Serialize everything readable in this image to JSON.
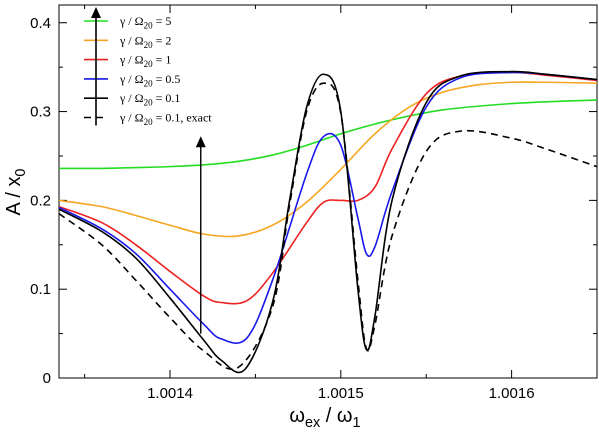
{
  "chart_data": {
    "type": "line",
    "xlabel": {
      "main": "ω",
      "sub": "ex",
      "sep": " / ω",
      "sub2": "1"
    },
    "ylabel": {
      "main": "A / x",
      "sub": "0"
    },
    "xlim": [
      1.001335,
      1.00165
    ],
    "ylim": [
      0,
      0.42
    ],
    "x_ticks": [
      1.0014,
      1.0015,
      1.0016
    ],
    "x_tick_labels": [
      "1.0014",
      "1.0015",
      "1.0016"
    ],
    "y_ticks": [
      0,
      0.1,
      0.2,
      0.3,
      0.4
    ],
    "y_tick_labels": [
      "0",
      "0.1",
      "0.2",
      "0.3",
      "0.4"
    ],
    "grid": false,
    "legend_position": "top-left",
    "annotation": {
      "type": "arrow",
      "direction": "up",
      "x": 1.001418,
      "y_from": 0.05,
      "y_to": 0.27
    },
    "series": [
      {
        "name": "γ / Ω20 = 5",
        "label": {
          "pre": "γ / Ω",
          "sub": "20",
          "post": " = 5"
        },
        "color": "#22dd22",
        "dash": false,
        "x": [
          1.001335,
          1.00136,
          1.00138,
          1.0014,
          1.00142,
          1.00144,
          1.00146,
          1.00148,
          1.0015,
          1.00152,
          1.00154,
          1.00156,
          1.00158,
          1.0016,
          1.00162,
          1.00165
        ],
        "y": [
          0.236,
          0.236,
          0.237,
          0.238,
          0.24,
          0.244,
          0.251,
          0.262,
          0.275,
          0.286,
          0.295,
          0.302,
          0.306,
          0.309,
          0.311,
          0.313
        ]
      },
      {
        "name": "γ / Ω20 = 2",
        "label": {
          "pre": "γ / Ω",
          "sub": "20",
          "post": " = 2"
        },
        "color": "#f5a623",
        "dash": false,
        "x": [
          1.001335,
          1.00136,
          1.00138,
          1.0014,
          1.00142,
          1.00144,
          1.00146,
          1.00148,
          1.0015,
          1.00152,
          1.00154,
          1.00156,
          1.00158,
          1.0016,
          1.00162,
          1.00165
        ],
        "y": [
          0.2,
          0.193,
          0.183,
          0.172,
          0.162,
          0.16,
          0.172,
          0.198,
          0.235,
          0.275,
          0.305,
          0.322,
          0.33,
          0.333,
          0.333,
          0.332
        ]
      },
      {
        "name": "γ / Ω20 = 1",
        "label": {
          "pre": "γ / Ω",
          "sub": "20",
          "post": " = 1"
        },
        "color": "#ee2020",
        "dash": false,
        "x": [
          1.001335,
          1.00136,
          1.00138,
          1.0014,
          1.00142,
          1.00143,
          1.001445,
          1.00146,
          1.00148,
          1.00149,
          1.0015,
          1.00151,
          1.00152,
          1.00153,
          1.00155,
          1.00157,
          1.0016,
          1.00162,
          1.00165
        ],
        "y": [
          0.193,
          0.175,
          0.15,
          0.12,
          0.092,
          0.085,
          0.087,
          0.118,
          0.175,
          0.198,
          0.2,
          0.2,
          0.215,
          0.258,
          0.32,
          0.34,
          0.344,
          0.341,
          0.335
        ]
      },
      {
        "name": "γ / Ω20 = 0.5",
        "label": {
          "pre": "γ / Ω",
          "sub": "20",
          "post": " = 0.5"
        },
        "color": "#1818ee",
        "dash": false,
        "x": [
          1.001335,
          1.00136,
          1.00138,
          1.0014,
          1.00142,
          1.00143,
          1.001445,
          1.00146,
          1.00148,
          1.00149,
          1.0015,
          1.00151,
          1.001515,
          1.00152,
          1.00153,
          1.00155,
          1.00157,
          1.0016,
          1.00162,
          1.00165
        ],
        "y": [
          0.192,
          0.168,
          0.14,
          0.1,
          0.06,
          0.044,
          0.045,
          0.11,
          0.23,
          0.272,
          0.262,
          0.18,
          0.14,
          0.148,
          0.21,
          0.305,
          0.338,
          0.344,
          0.342,
          0.336
        ]
      },
      {
        "name": "γ / Ω20 = 0.1",
        "label": {
          "pre": "γ / Ω",
          "sub": "20",
          "post": " = 0.1"
        },
        "color": "#000000",
        "dash": false,
        "x": [
          1.001335,
          1.00136,
          1.00138,
          1.0014,
          1.00142,
          1.00143,
          1.001444,
          1.00146,
          1.00147,
          1.00148,
          1.00149,
          1.0015,
          1.00151,
          1.001515,
          1.00152,
          1.00153,
          1.00155,
          1.00157,
          1.0016,
          1.00162,
          1.00165
        ],
        "y": [
          0.19,
          0.165,
          0.135,
          0.09,
          0.042,
          0.02,
          0.01,
          0.085,
          0.2,
          0.305,
          0.342,
          0.3,
          0.1,
          0.032,
          0.07,
          0.2,
          0.31,
          0.34,
          0.345,
          0.342,
          0.336
        ]
      },
      {
        "name": "γ / Ω20 = 0.1, exact",
        "label": {
          "pre": "γ / Ω",
          "sub": "20",
          "post": " = 0.1, exact"
        },
        "color": "#000000",
        "dash": true,
        "x": [
          1.001335,
          1.00136,
          1.00138,
          1.0014,
          1.00142,
          1.00144,
          1.00146,
          1.00147,
          1.00148,
          1.00149,
          1.0015,
          1.00151,
          1.001515,
          1.00152,
          1.00153,
          1.00155,
          1.00157,
          1.0016,
          1.00162,
          1.00165
        ],
        "y": [
          0.185,
          0.15,
          0.11,
          0.068,
          0.03,
          0.012,
          0.08,
          0.195,
          0.3,
          0.332,
          0.298,
          0.11,
          0.033,
          0.06,
          0.16,
          0.255,
          0.278,
          0.27,
          0.258,
          0.238
        ]
      }
    ]
  }
}
